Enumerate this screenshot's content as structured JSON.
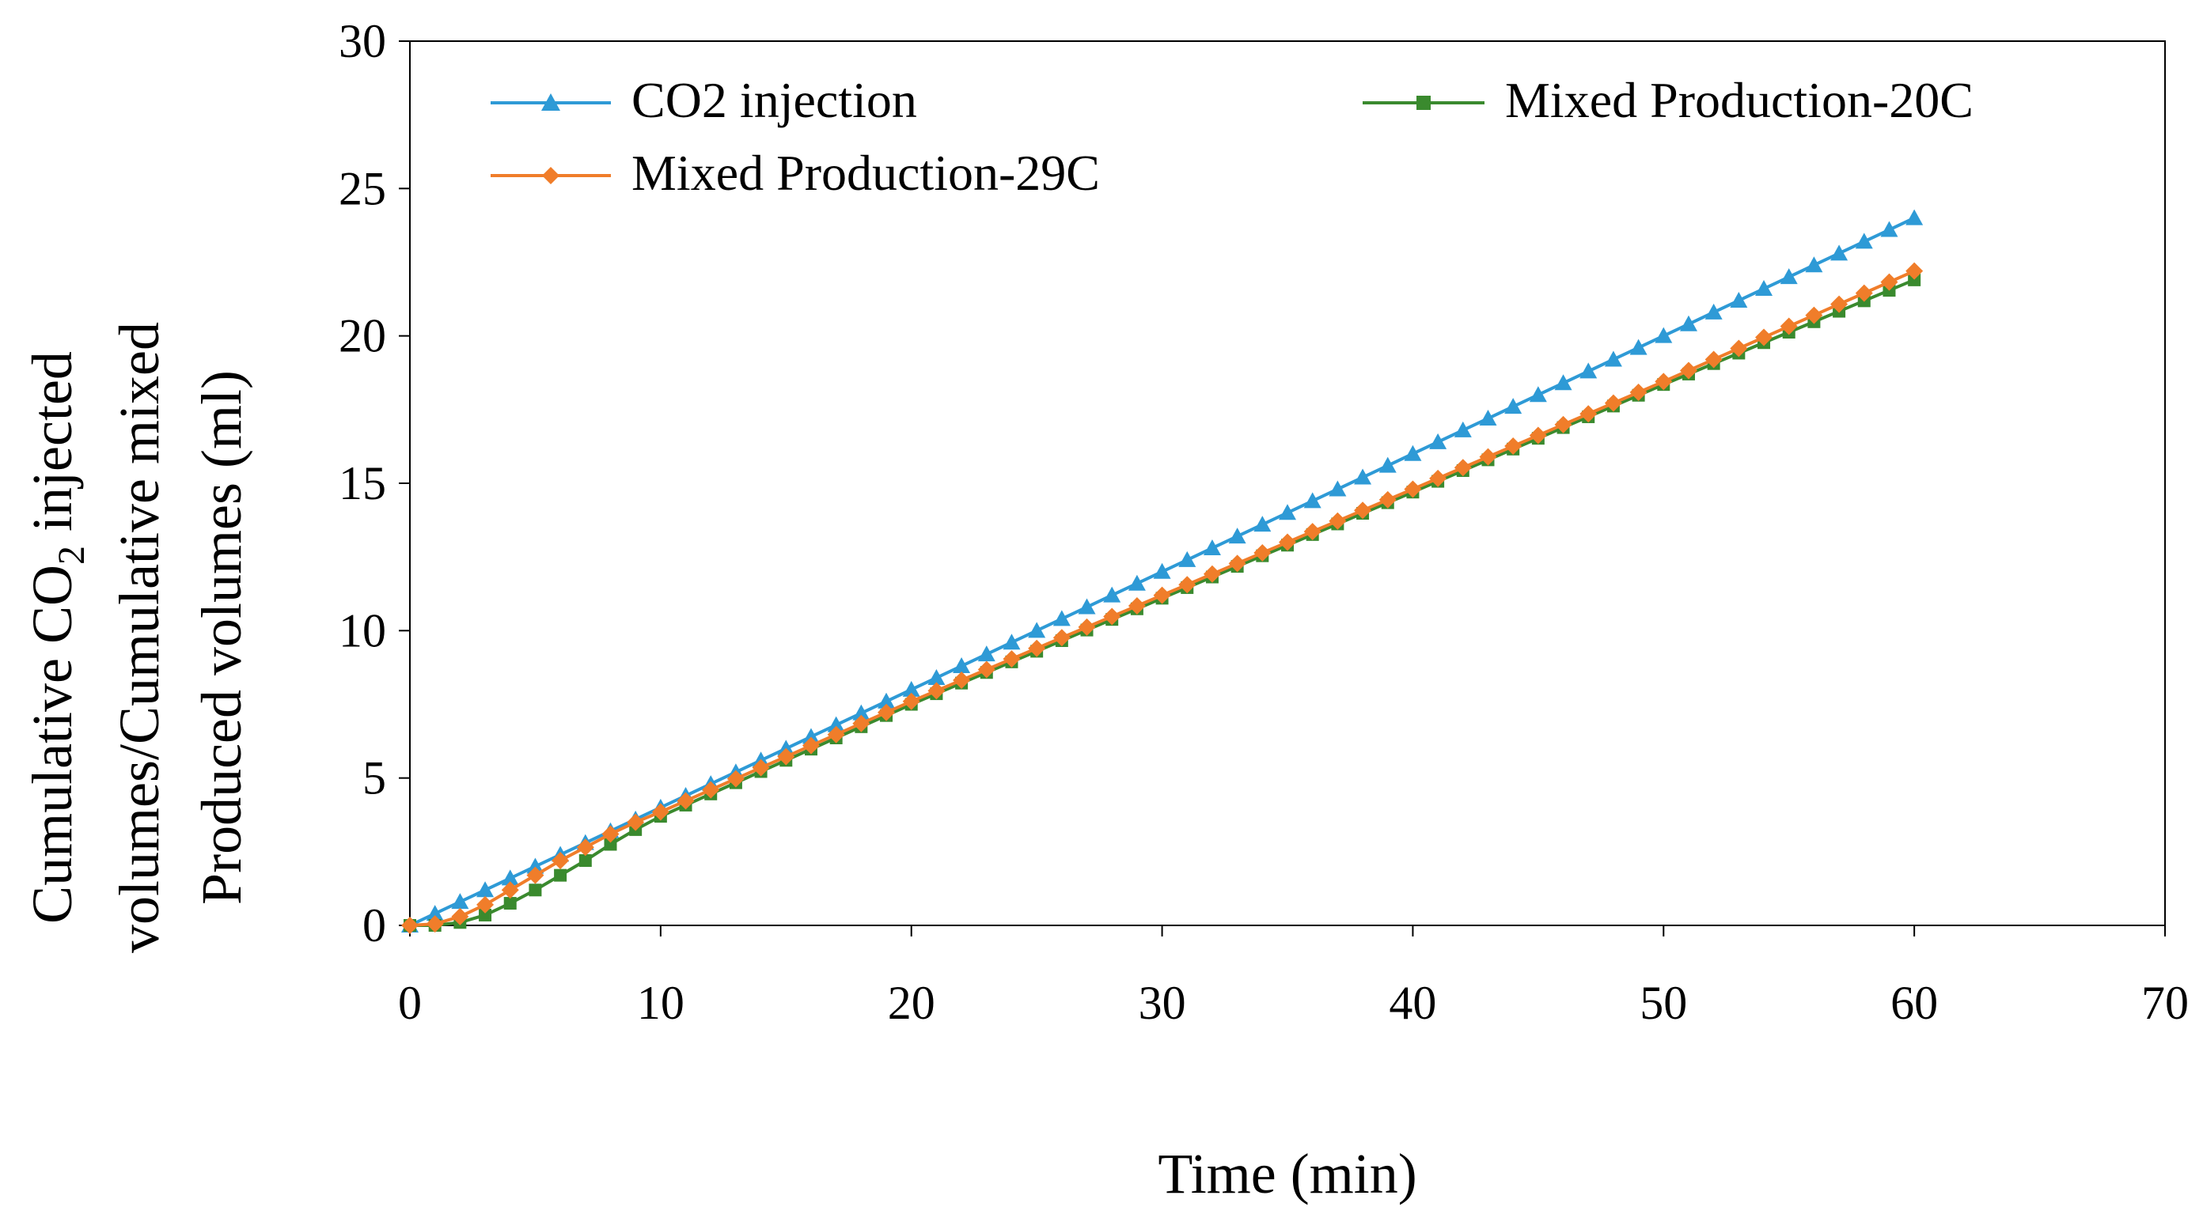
{
  "chart_data": {
    "type": "line",
    "title": "",
    "xlabel": "Time (min)",
    "ylabel_line1_prefix": "Cumulative CO",
    "ylabel_line1_sub": "2",
    "ylabel_line1_suffix": " injected",
    "ylabel_line2": "volumes/Cumulative mixed",
    "ylabel_line3": "Produced volumes (ml)",
    "xlim": [
      0,
      70
    ],
    "ylim": [
      0,
      30
    ],
    "xticks": [
      0,
      10,
      20,
      30,
      40,
      50,
      60,
      70
    ],
    "yticks": [
      0,
      5,
      10,
      15,
      20,
      25,
      30
    ],
    "grid": false,
    "legend_placement": "top",
    "sampling": {
      "start": 0,
      "end": 60,
      "step": 1
    },
    "series": [
      {
        "name": "CO2 injection",
        "color": "#2E9AD6",
        "marker": "triangle",
        "knots": [
          [
            0,
            0
          ],
          [
            60,
            24
          ]
        ]
      },
      {
        "name": "Mixed Production-20C",
        "color": "#3A8A2E",
        "marker": "square",
        "knots": [
          [
            0,
            0
          ],
          [
            1,
            0
          ],
          [
            2,
            0.1
          ],
          [
            3,
            0.35
          ],
          [
            4,
            0.75
          ],
          [
            5,
            1.2
          ],
          [
            6,
            1.7
          ],
          [
            7,
            2.2
          ],
          [
            8,
            2.75
          ],
          [
            9,
            3.25
          ],
          [
            10,
            3.7
          ],
          [
            20,
            7.5
          ],
          [
            30,
            11.1
          ],
          [
            40,
            14.7
          ],
          [
            50,
            18.35
          ],
          [
            60,
            21.9
          ]
        ]
      },
      {
        "name": "Mixed Production-29C",
        "color": "#F07D2A",
        "marker": "diamond",
        "knots": [
          [
            0,
            0
          ],
          [
            1,
            0.05
          ],
          [
            2,
            0.3
          ],
          [
            3,
            0.7
          ],
          [
            4,
            1.2
          ],
          [
            5,
            1.7
          ],
          [
            6,
            2.2
          ],
          [
            7,
            2.65
          ],
          [
            8,
            3.1
          ],
          [
            9,
            3.5
          ],
          [
            10,
            3.85
          ],
          [
            20,
            7.6
          ],
          [
            30,
            11.2
          ],
          [
            40,
            14.8
          ],
          [
            50,
            18.45
          ],
          [
            60,
            22.2
          ]
        ]
      }
    ]
  }
}
